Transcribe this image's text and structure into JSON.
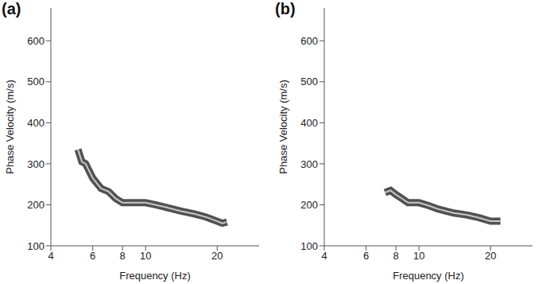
{
  "chart_data": [
    {
      "type": "line",
      "title": "(a)",
      "x_label": "Frequency (Hz)",
      "y_label": "Phase Velocity (m/s)",
      "log": "x",
      "grid": false,
      "color": "#c8c8c8",
      "x": [
        5.2,
        5.4,
        5.6,
        6,
        6.5,
        7,
        7.5,
        8,
        9,
        10,
        11,
        12,
        14,
        16,
        18,
        20,
        21,
        22
      ],
      "values": [
        335,
        305,
        300,
        265,
        240,
        232,
        215,
        205,
        205,
        205,
        200,
        195,
        185,
        178,
        170,
        160,
        155,
        158
      ],
      "xlim": [
        4,
        30
      ],
      "xticks": [
        4,
        6,
        8,
        10,
        20
      ],
      "ylim": [
        100,
        680
      ],
      "yticks": [
        100,
        200,
        300,
        400,
        500,
        600
      ]
    },
    {
      "type": "line",
      "title": "(b)",
      "x_label": "Frequency (Hz)",
      "y_label": "Phase Velocity (m/s)",
      "log": "x",
      "grid": false,
      "color": "#c8c8c8",
      "x": [
        7.2,
        7.6,
        8,
        8.5,
        9,
        10,
        11,
        12,
        14,
        16,
        18,
        20,
        22
      ],
      "values": [
        230,
        235,
        225,
        215,
        205,
        205,
        198,
        190,
        180,
        175,
        168,
        160,
        160
      ],
      "xlim": [
        4,
        30
      ],
      "xticks": [
        4,
        6,
        8,
        10,
        20
      ],
      "ylim": [
        100,
        680
      ],
      "yticks": [
        100,
        200,
        300,
        400,
        500,
        600
      ]
    }
  ]
}
